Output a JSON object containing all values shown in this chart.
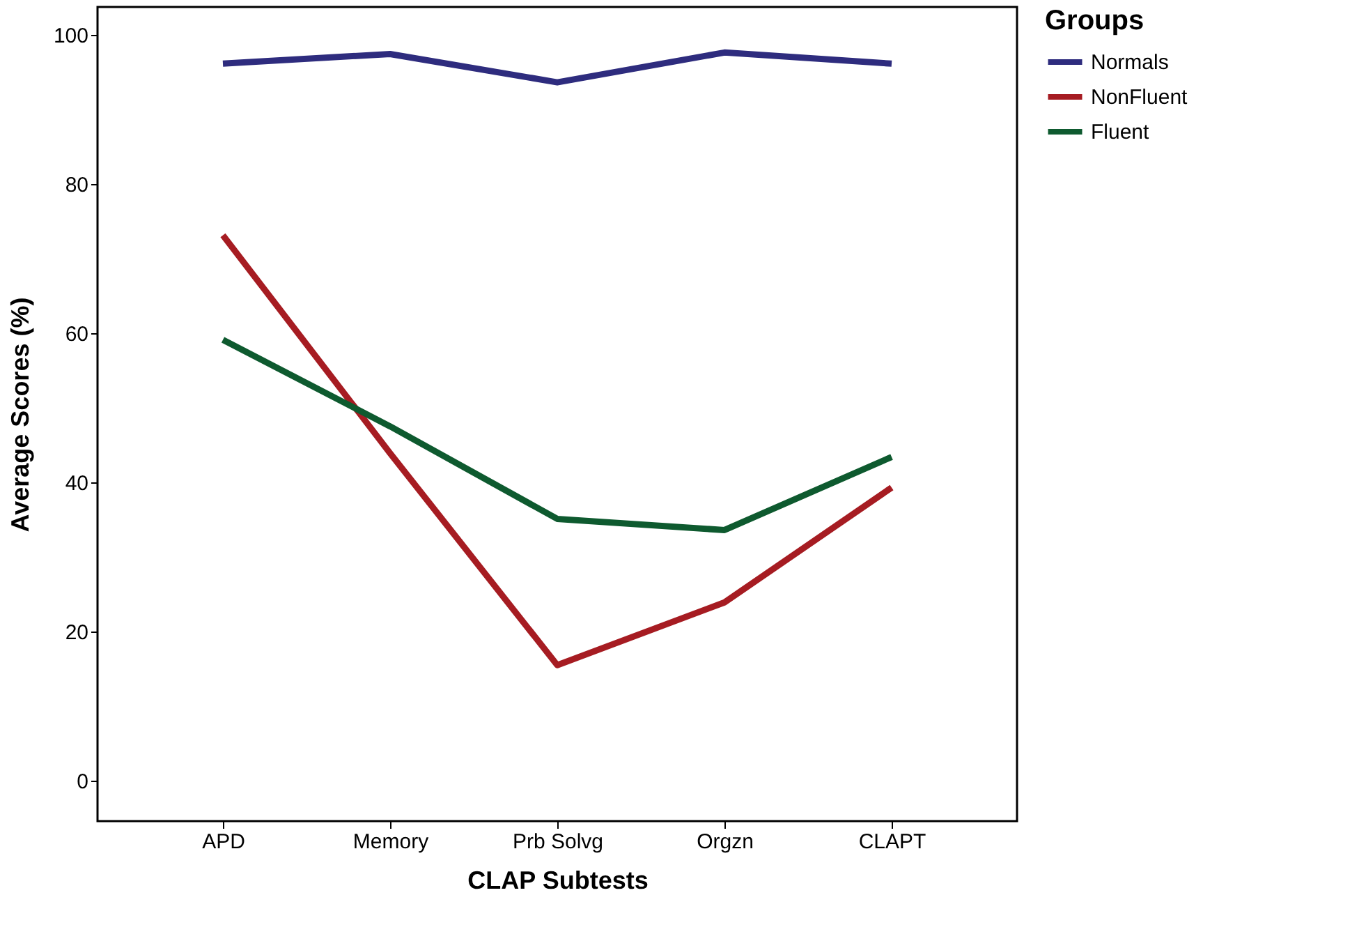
{
  "chart_data": {
    "type": "line",
    "xlabel": "CLAP Subtests",
    "ylabel": "Average Scores (%)",
    "legend_title": "Groups",
    "legend": "right",
    "grid": false,
    "line_style": "solid",
    "marker": "none",
    "categories": [
      "APD",
      "Memory",
      "Prb Solvg",
      "Orgzn",
      "CLAPT"
    ],
    "ylim": [
      -5.4,
      103.7
    ],
    "yticks": [
      0,
      20,
      40,
      60,
      80,
      100
    ],
    "series": [
      {
        "name": "Normals",
        "color": "#2e2c7e",
        "values": [
          96.1,
          97.4,
          93.6,
          97.6,
          96.1
        ]
      },
      {
        "name": "NonFluent",
        "color": "#a61c22",
        "values": [
          73.1,
          43.9,
          15.5,
          23.9,
          39.3
        ]
      },
      {
        "name": "Fluent",
        "color": "#0e5a2f",
        "values": [
          59.1,
          47.5,
          35.1,
          33.6,
          43.4
        ]
      }
    ]
  }
}
